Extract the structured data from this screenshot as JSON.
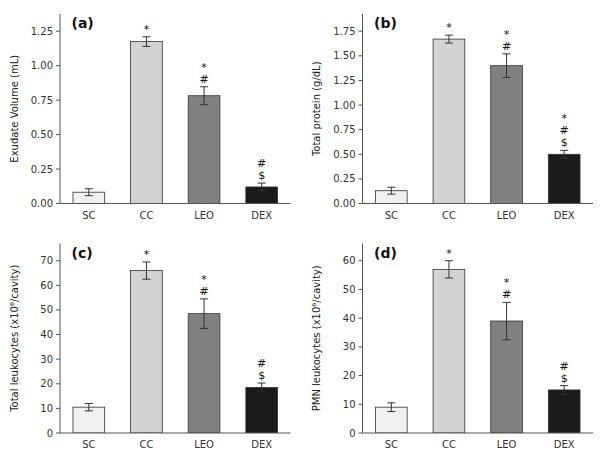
{
  "chart_data": [
    {
      "type": "bar",
      "title": "(a)",
      "ylabel": "Exudate Volume (mL)",
      "categories": [
        "SC",
        "CC",
        "LEO",
        "DEX"
      ],
      "values": [
        0.082,
        1.175,
        0.782,
        0.12
      ],
      "errors": [
        0.025,
        0.035,
        0.065,
        0.028
      ],
      "colors": [
        "#f0f0f0",
        "#d3d3d3",
        "#808080",
        "#1a1a1a"
      ],
      "ylim": [
        0,
        1.375
      ],
      "yticks": [
        {
          "value": 0,
          "label": "0.00"
        },
        0.25,
        {
          "value": 0.5,
          "label": "0.50"
        },
        0.75,
        {
          "value": 1,
          "label": "1.00"
        },
        1.25
      ],
      "grid": false,
      "annotations": [
        {
          "category": "CC",
          "symbols": [
            "*"
          ]
        },
        {
          "category": "LEO",
          "symbols": [
            "#",
            "*"
          ]
        },
        {
          "category": "DEX",
          "symbols": [
            "$",
            "#"
          ]
        }
      ]
    },
    {
      "type": "bar",
      "title": "(b)",
      "ylabel": "Total protein (g/dL)",
      "categories": [
        "SC",
        "CC",
        "LEO",
        "DEX"
      ],
      "values": [
        0.13,
        1.67,
        1.4,
        0.5
      ],
      "errors": [
        0.035,
        0.04,
        0.12,
        0.04
      ],
      "colors": [
        "#f0f0f0",
        "#d3d3d3",
        "#808080",
        "#1a1a1a"
      ],
      "ylim": [
        0,
        1.925
      ],
      "yticks": [
        {
          "value": 0,
          "label": "0.00"
        },
        0.25,
        {
          "value": 0.5,
          "label": "0.50"
        },
        0.75,
        {
          "value": 1,
          "label": "1.00"
        },
        1.25,
        {
          "value": 1.5,
          "label": "1.50"
        },
        1.75
      ],
      "grid": false,
      "annotations": [
        {
          "category": "CC",
          "symbols": [
            "*"
          ]
        },
        {
          "category": "LEO",
          "symbols": [
            "#",
            "*"
          ]
        },
        {
          "category": "DEX",
          "symbols": [
            "$",
            "#",
            "*"
          ]
        }
      ]
    },
    {
      "type": "bar",
      "title": "(c)",
      "ylabel": "Total leukocytes (x10⁶/cavity)",
      "categories": [
        "SC",
        "CC",
        "LEO",
        "DEX"
      ],
      "values": [
        10.5,
        66.0,
        48.5,
        18.5
      ],
      "errors": [
        1.5,
        3.5,
        6.0,
        1.8
      ],
      "colors": [
        "#f0f0f0",
        "#d3d3d3",
        "#808080",
        "#1a1a1a"
      ],
      "ylim": [
        0,
        77
      ],
      "yticks": [
        0,
        10,
        20,
        30,
        40,
        50,
        60,
        70
      ],
      "grid": false,
      "annotations": [
        {
          "category": "CC",
          "symbols": [
            "*"
          ]
        },
        {
          "category": "LEO",
          "symbols": [
            "#",
            "*"
          ]
        },
        {
          "category": "DEX",
          "symbols": [
            "$",
            "#"
          ]
        }
      ]
    },
    {
      "type": "bar",
      "title": "(d)",
      "ylabel": "PMN leukocytes (x10⁶/cavity)",
      "categories": [
        "SC",
        "CC",
        "LEO",
        "DEX"
      ],
      "values": [
        9.0,
        57.0,
        39.0,
        15.0
      ],
      "errors": [
        1.5,
        3.0,
        6.5,
        1.5
      ],
      "colors": [
        "#f0f0f0",
        "#d3d3d3",
        "#808080",
        "#1a1a1a"
      ],
      "ylim": [
        0,
        66
      ],
      "yticks": [
        0,
        10,
        20,
        30,
        40,
        50,
        60
      ],
      "grid": false,
      "annotations": [
        {
          "category": "CC",
          "symbols": [
            "*"
          ]
        },
        {
          "category": "LEO",
          "symbols": [
            "#",
            "*"
          ]
        },
        {
          "category": "DEX",
          "symbols": [
            "$",
            "#"
          ]
        }
      ]
    }
  ]
}
